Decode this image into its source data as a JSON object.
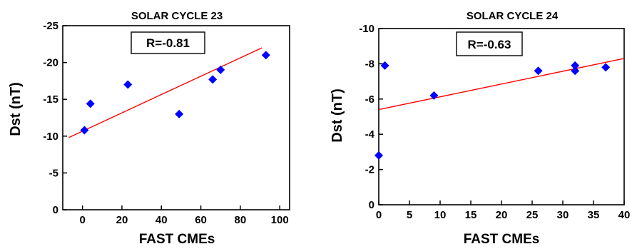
{
  "chart_data": [
    {
      "type": "scatter",
      "title": "SOLAR CYCLE 23",
      "xlabel": "FAST CMEs",
      "ylabel": "Dst (nT)",
      "annotation": "R=-0.81",
      "xlim": [
        -10,
        105
      ],
      "ylim": [
        0,
        -25
      ],
      "xticks": [
        0,
        20,
        40,
        60,
        80,
        100
      ],
      "xtick_labels": [
        "0",
        "20",
        "40",
        "60",
        "80",
        "100"
      ],
      "yticks": [
        0,
        -5,
        -10,
        -15,
        -20,
        -25
      ],
      "ytick_labels": [
        "0",
        "-5",
        "-10",
        "-15",
        "-20",
        "-25"
      ],
      "y_axis_inverted": true,
      "grid": false,
      "legend": "none",
      "marker": "diamond",
      "marker_color": "#0000ff",
      "line_color": "#ff0000",
      "x": [
        1,
        4,
        23,
        49,
        66,
        70,
        93
      ],
      "y": [
        -10.8,
        -14.4,
        -17.0,
        -13.0,
        -17.7,
        -19.0,
        -21.0
      ],
      "fit_line": {
        "x": [
          -7,
          91
        ],
        "y": [
          -9.8,
          -22.0
        ]
      }
    },
    {
      "type": "scatter",
      "title": "SOLAR CYCLE 24",
      "xlabel": "FAST CMEs",
      "ylabel": "Dst (nT)",
      "annotation": "R=-0.63",
      "xlim": [
        0,
        40
      ],
      "ylim": [
        0,
        -10
      ],
      "xticks": [
        0,
        5,
        10,
        15,
        20,
        25,
        30,
        35,
        40
      ],
      "xtick_labels": [
        "0",
        "5",
        "10",
        "15",
        "20",
        "25",
        "30",
        "35",
        "40"
      ],
      "yticks": [
        0,
        -2,
        -4,
        -6,
        -8,
        -10
      ],
      "ytick_labels": [
        "0",
        "-2",
        "-4",
        "-6",
        "-8",
        "-10"
      ],
      "y_axis_inverted": true,
      "grid": false,
      "legend": "none",
      "marker": "diamond",
      "marker_color": "#0000ff",
      "line_color": "#ff0000",
      "x": [
        0,
        1,
        9,
        26,
        32,
        32,
        37
      ],
      "y": [
        -2.8,
        -7.9,
        -6.2,
        -7.6,
        -7.9,
        -7.6,
        -7.8
      ],
      "fit_line": {
        "x": [
          0,
          40
        ],
        "y": [
          -5.4,
          -8.3
        ]
      }
    }
  ]
}
